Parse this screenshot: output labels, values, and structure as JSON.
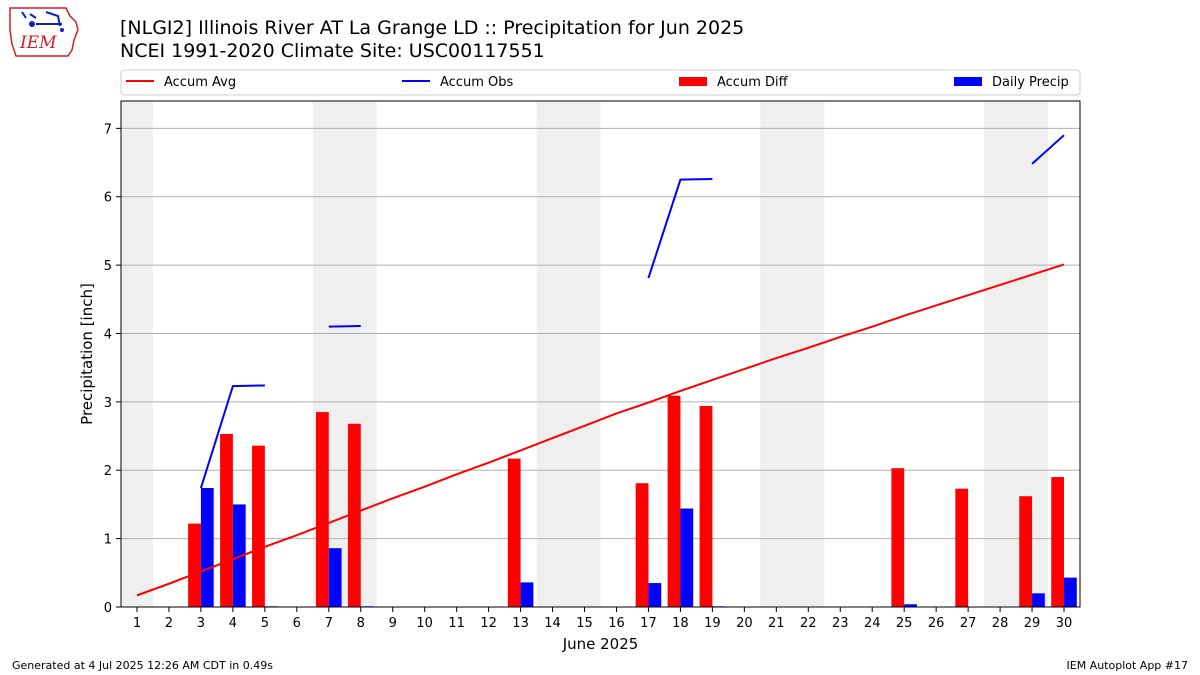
{
  "header": {
    "title": "[NLGI2] Illinois River  AT La Grange LD :: Precipitation for Jun 2025",
    "subtitle": "NCEI 1991-2020 Climate Site: USC00117551",
    "logo_text": "IEM"
  },
  "footer": {
    "left": "Generated at 4 Jul 2025 12:26 AM CDT in 0.49s",
    "right": "IEM Autoplot App #17"
  },
  "colors": {
    "accum_avg": "#ff0000",
    "accum_obs": "#0000ff",
    "accum_diff": "#ff0000",
    "daily_precip": "#0000ff",
    "weekend_band": "#efefef",
    "grid": "#b0b0b0"
  },
  "chart_data": {
    "type": "bar",
    "title": "[NLGI2] Illinois River  AT La Grange LD :: Precipitation for Jun 2025",
    "xlabel": "June 2025",
    "ylabel": "Precipitation [inch]",
    "xlim": [
      0.5,
      30.5
    ],
    "ylim": [
      0,
      7.4
    ],
    "yticks": [
      0,
      1,
      2,
      3,
      4,
      5,
      6,
      7
    ],
    "x": [
      1,
      2,
      3,
      4,
      5,
      6,
      7,
      8,
      9,
      10,
      11,
      12,
      13,
      14,
      15,
      16,
      17,
      18,
      19,
      20,
      21,
      22,
      23,
      24,
      25,
      26,
      27,
      28,
      29,
      30
    ],
    "weekend_bands": [
      [
        0.5,
        1.5
      ],
      [
        6.5,
        8.5
      ],
      [
        13.5,
        15.5
      ],
      [
        20.5,
        22.5
      ],
      [
        27.5,
        29.5
      ]
    ],
    "grid": "horizontal",
    "legend_placement": "top, above plot",
    "legend": [
      "Accum Avg",
      "Accum Obs",
      "Accum Diff",
      "Daily Precip"
    ],
    "series": [
      {
        "name": "Accum Avg",
        "kind": "line",
        "values": [
          0.17,
          0.34,
          0.52,
          0.7,
          0.88,
          1.05,
          1.23,
          1.41,
          1.59,
          1.76,
          1.94,
          2.11,
          2.29,
          2.47,
          2.65,
          2.83,
          2.99,
          3.16,
          3.32,
          3.48,
          3.64,
          3.79,
          3.95,
          4.1,
          4.26,
          4.41,
          4.56,
          4.71,
          4.86,
          5.01
        ]
      },
      {
        "name": "Accum Obs",
        "kind": "line",
        "values": [
          null,
          null,
          1.74,
          3.23,
          3.24,
          null,
          4.1,
          4.11,
          null,
          null,
          null,
          null,
          null,
          null,
          null,
          null,
          4.81,
          6.25,
          6.26,
          null,
          null,
          null,
          null,
          null,
          null,
          null,
          null,
          null,
          6.48,
          6.9
        ]
      },
      {
        "name": "Accum Diff",
        "kind": "bar",
        "values": [
          0,
          0,
          1.22,
          2.53,
          2.36,
          0,
          2.85,
          2.68,
          0,
          0,
          0,
          0,
          2.17,
          0,
          0,
          0,
          1.81,
          3.09,
          2.94,
          0,
          0,
          0,
          0,
          0,
          2.03,
          0,
          1.73,
          0,
          1.62,
          1.9
        ]
      },
      {
        "name": "Daily Precip",
        "kind": "bar",
        "values": [
          0,
          0,
          1.74,
          1.5,
          0.01,
          0,
          0.86,
          0.01,
          0,
          0,
          0,
          0,
          0.36,
          0,
          0,
          0,
          0.35,
          1.44,
          0.01,
          0,
          0,
          0,
          0,
          0,
          0.04,
          0,
          0,
          0,
          0.2,
          0.43
        ]
      }
    ]
  }
}
